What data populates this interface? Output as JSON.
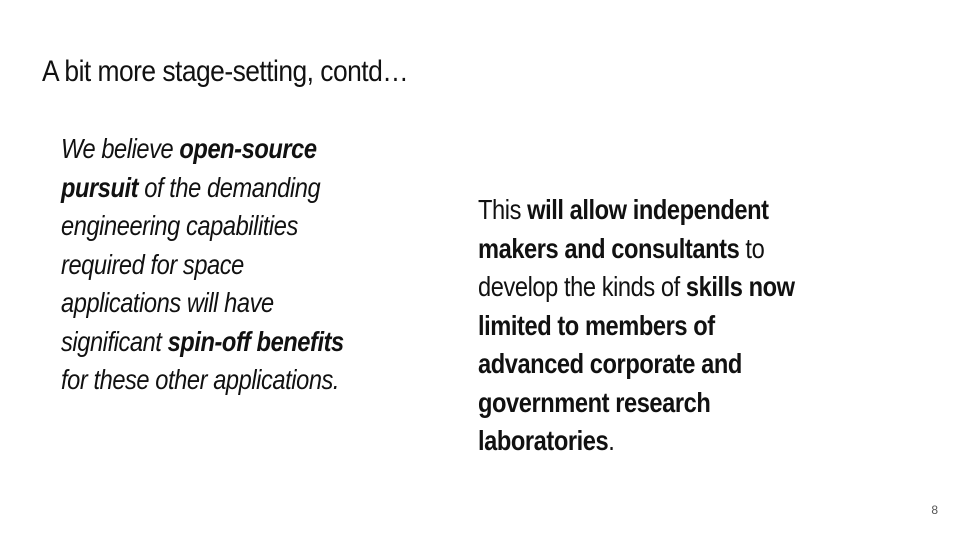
{
  "slide": {
    "title": "A bit more stage-setting, contd…",
    "page_number": "8"
  },
  "left": {
    "p1": "We believe ",
    "b1": "open-source pursuit",
    "p2": " of the demanding engineering capabilities required for space applications will have significant ",
    "b2": "spin-off benefits",
    "p3": " for these other applications."
  },
  "right": {
    "p1": "This ",
    "b1": "will allow independent makers and consultants",
    "p2": " to develop the kinds of ",
    "b2": "skills now limited to members of advanced corporate and government research laboratories",
    "p3": "."
  }
}
